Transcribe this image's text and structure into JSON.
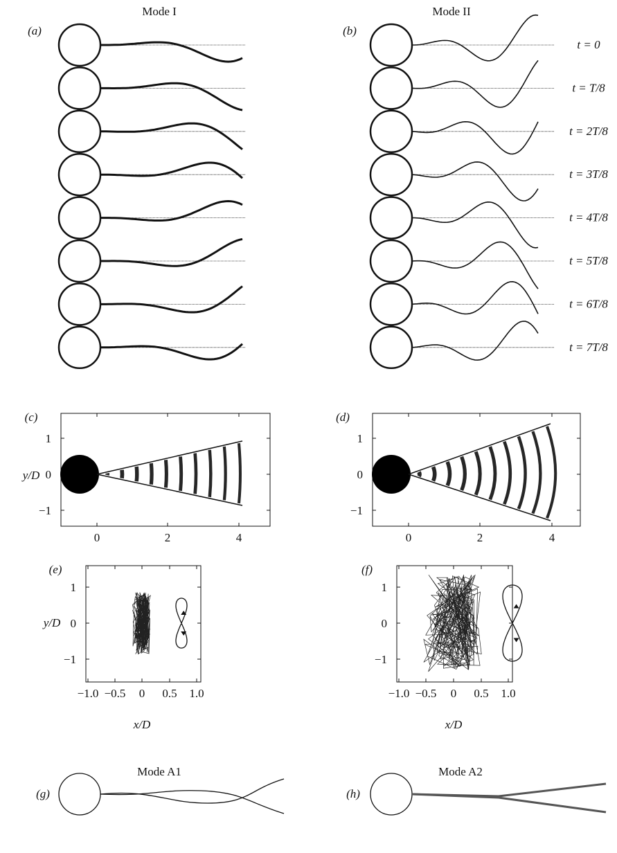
{
  "panels": {
    "a": {
      "label": "(a)",
      "title": "Mode I"
    },
    "b": {
      "label": "(b)",
      "title": "Mode II",
      "times": [
        "t = 0",
        "t = T/8",
        "t = 2T/8",
        "t = 3T/8",
        "t = 4T/8",
        "t = 5T/8",
        "t = 6T/8",
        "t = 7T/8"
      ]
    },
    "c": {
      "label": "(c)",
      "ylabel": "y/D",
      "xticks": [
        "0",
        "2",
        "4"
      ],
      "yticks": [
        "1",
        "0",
        "−1"
      ]
    },
    "d": {
      "label": "(d)",
      "xticks": [
        "0",
        "2",
        "4"
      ],
      "yticks": [
        "1",
        "0",
        "−1"
      ]
    },
    "e": {
      "label": "(e)",
      "ylabel": "y/D",
      "xlabel": "x/D",
      "xticks": [
        "−1.0",
        "−0.5",
        "0",
        "0.5",
        "1.0"
      ],
      "yticks": [
        "1",
        "0",
        "−1"
      ]
    },
    "f": {
      "label": "(f)",
      "xlabel": "x/D",
      "xticks": [
        "−1.0",
        "−0.5",
        "0",
        "0.5",
        "1.0"
      ],
      "yticks": [
        "1",
        "0",
        "−1"
      ]
    },
    "g": {
      "label": "(g)",
      "title": "Mode A1"
    },
    "h": {
      "label": "(h)",
      "title": "Mode A2"
    }
  }
}
